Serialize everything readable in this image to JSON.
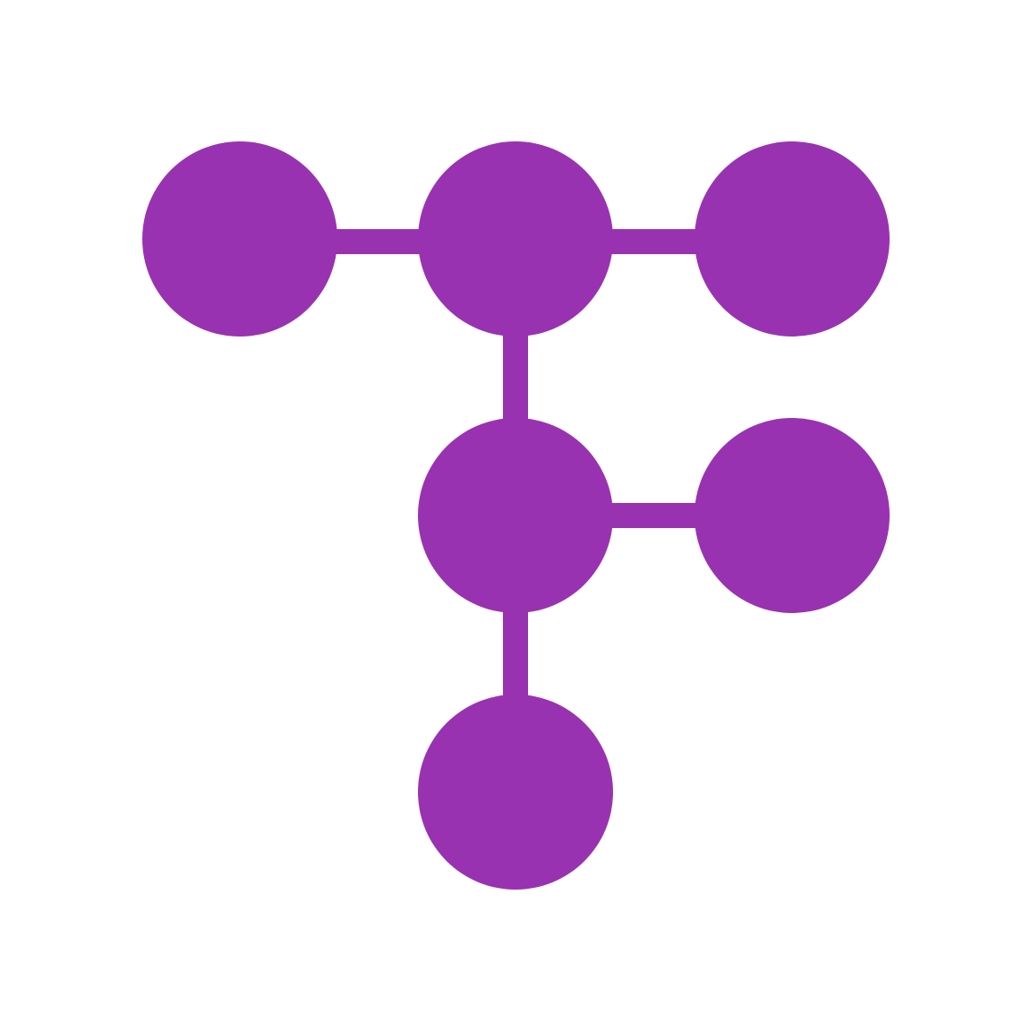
{
  "colors": {
    "background": "#ffffff",
    "brand": "#9932b1"
  },
  "icon": {
    "name": "node-tree-logo-icon"
  }
}
